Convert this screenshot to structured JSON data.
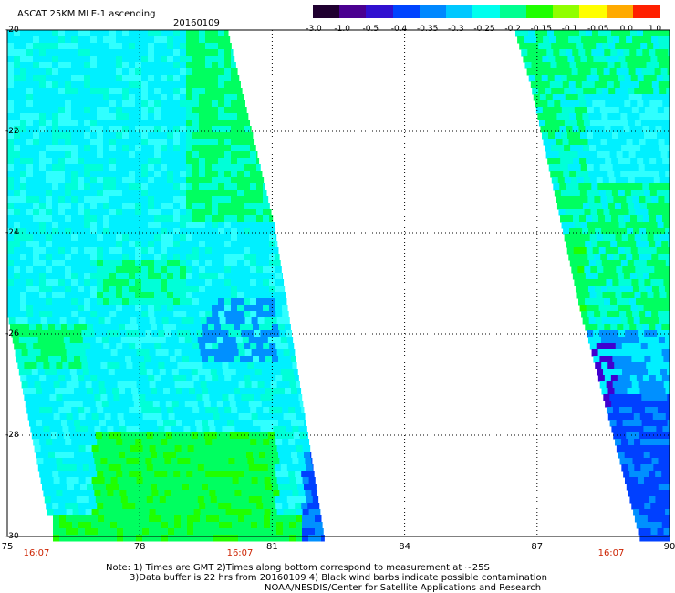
{
  "header": {
    "title": "ASCAT 25KM MLE-1 ascending",
    "date": "20160109"
  },
  "colorbar": {
    "labels": [
      "-3.0",
      "-1.0",
      "-0.5",
      "-0.4",
      "-0.35",
      "-0.3",
      "-0.25",
      "-0.2",
      "-0.15",
      "-0.1",
      "-0.05",
      "0.0",
      "1.0"
    ],
    "colors": [
      "#200030",
      "#4a0090",
      "#3010d0",
      "#0044ff",
      "#0088ff",
      "#00c8ff",
      "#00ffee",
      "#00ff90",
      "#20ff00",
      "#90ff00",
      "#ffff00",
      "#ffaa00",
      "#ff2000"
    ]
  },
  "map": {
    "lat_labels": [
      "-20",
      "-22",
      "-24",
      "-26",
      "-28",
      "-30"
    ],
    "lon_labels": [
      "75",
      "78",
      "81",
      "84",
      "87",
      "90"
    ],
    "time_labels": [
      "16:07",
      "16:07",
      "16:07"
    ],
    "colors": {
      "cyan": "#00f0ff",
      "light_cyan": "#30ffff",
      "aqua": "#00ffd8",
      "green": "#00ff60",
      "bright_green": "#20ff00",
      "blue": "#0090ff",
      "deep_blue": "#0040ff",
      "purple": "#4000d0",
      "yellow": "#ffff00"
    }
  },
  "notes": {
    "line1": "Note: 1) Times are GMT 2)Times along bottom correspond to measurement at ~25S",
    "line2": "3)Data buffer is 22 hrs from 20160109 4) Black wind barbs indicate possible contamination",
    "line3": "NOAA/NESDIS/Center for Satellite Applications and Research"
  }
}
